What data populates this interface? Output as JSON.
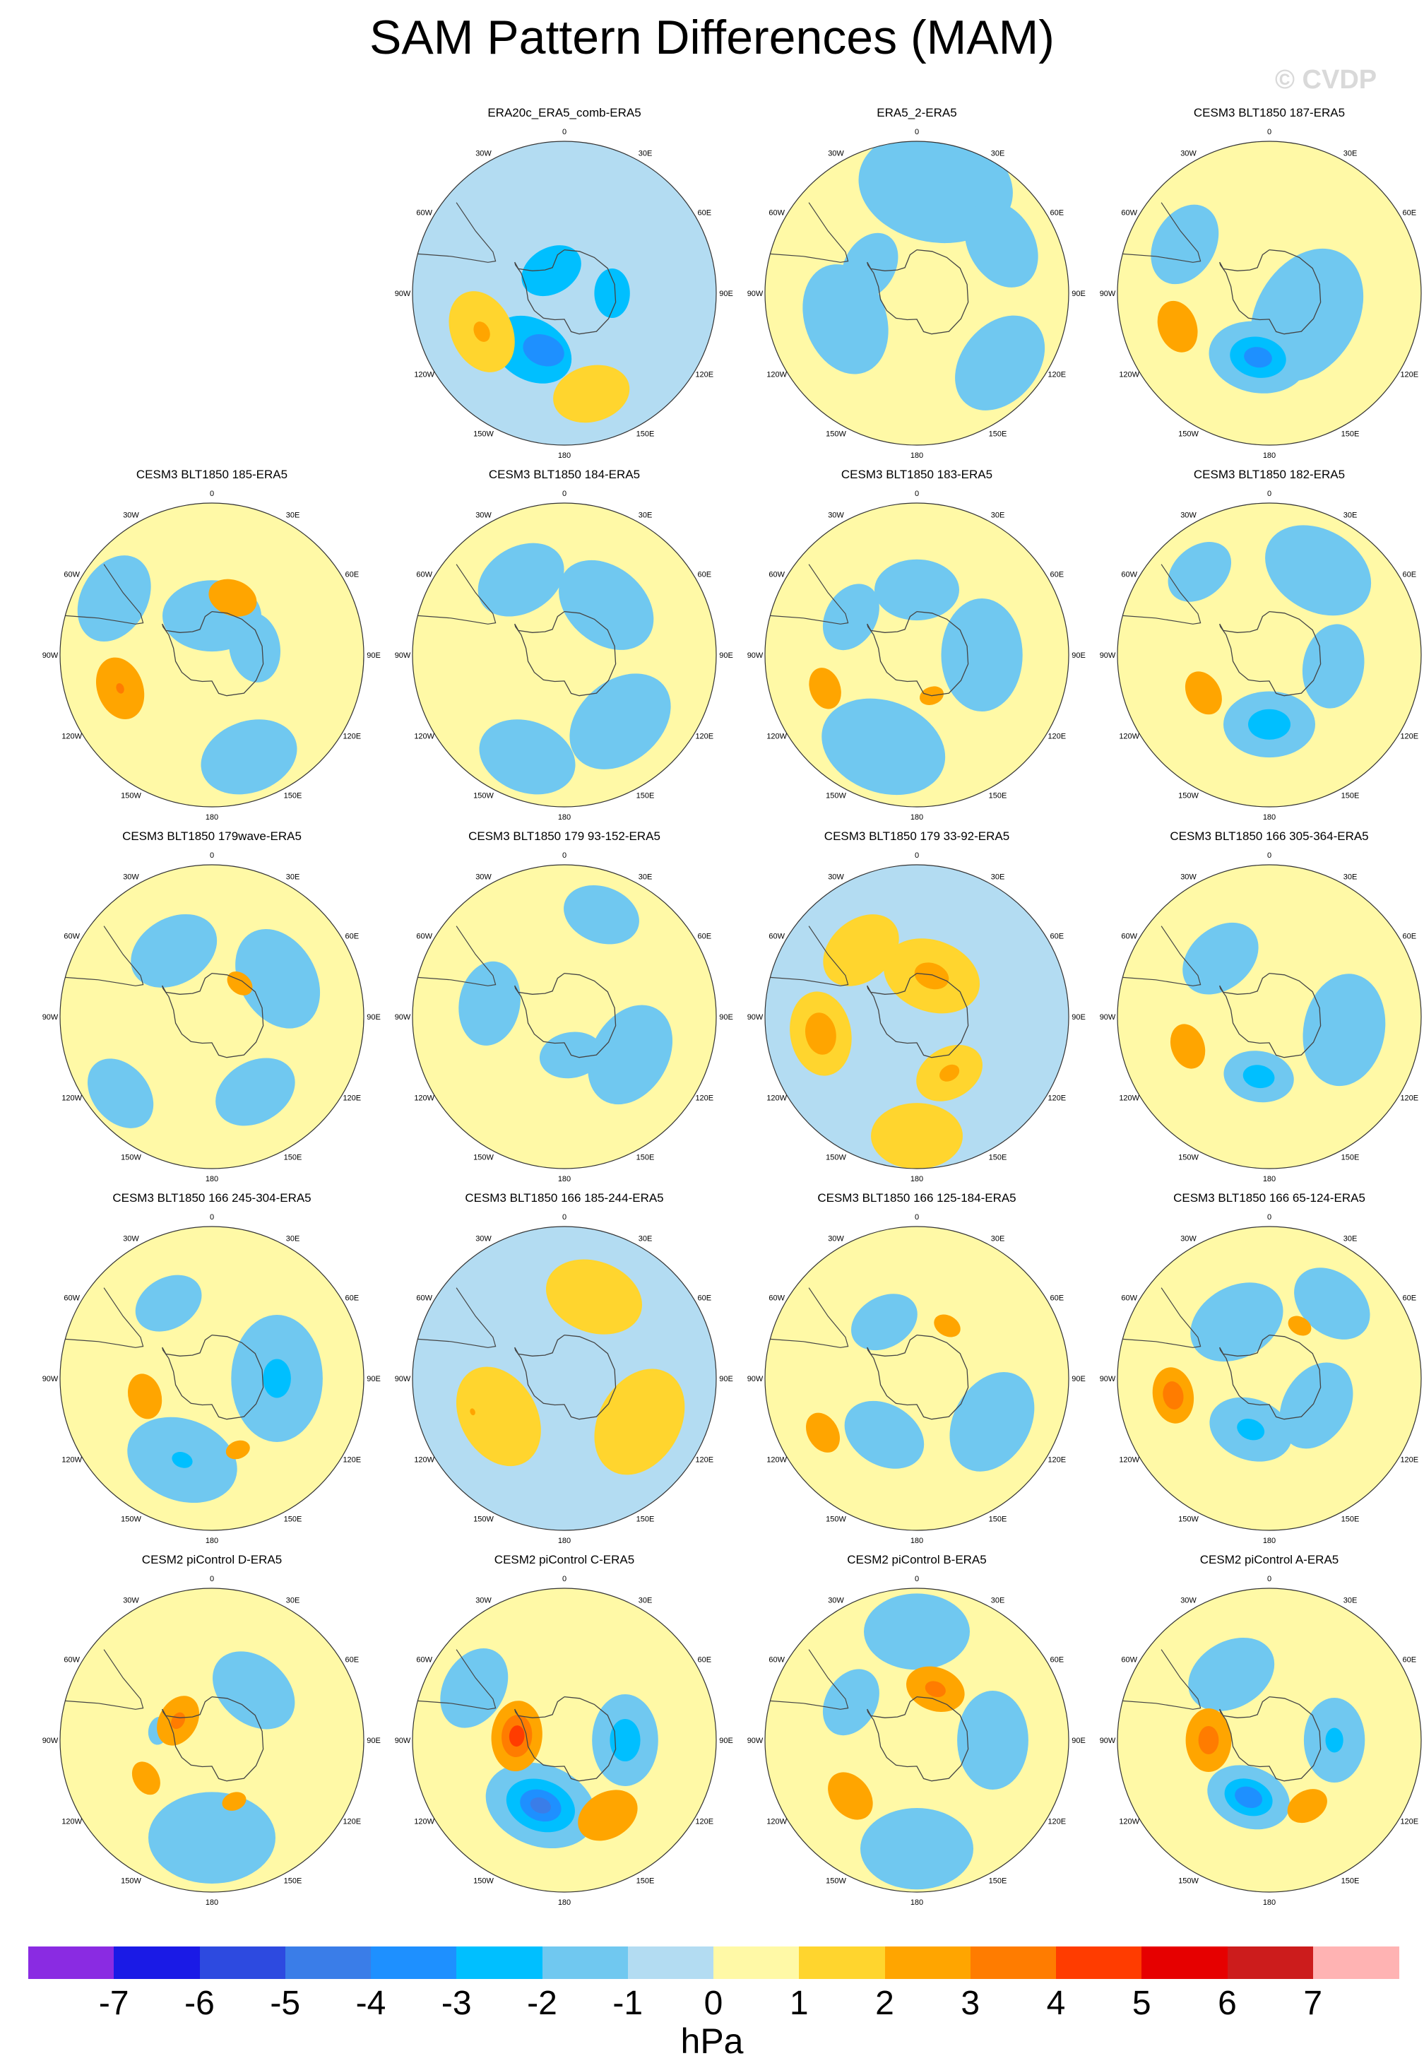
{
  "figure": {
    "title": "SAM Pattern Differences (MAM)",
    "watermark": "© CVDP",
    "units": "hPa"
  },
  "lon_labels": [
    "0",
    "30E",
    "60E",
    "90E",
    "120E",
    "150E",
    "180",
    "150W",
    "120W",
    "90W",
    "60W",
    "30W"
  ],
  "colors": {
    "zero_to_neg1": "#b3dcf2",
    "zero_to_pos1": "#fff9a6",
    "coast": "#444444",
    "circle": "#333333"
  },
  "panels": [
    {
      "title": "ERA20c_ERA5_comb-ERA5",
      "background": "#b3dcf2",
      "features": [
        {
          "lon": 210,
          "lat": -60,
          "level": -2,
          "size": 1.2
        },
        {
          "lon": 200,
          "lat": -62,
          "level": -3,
          "size": 0.6
        },
        {
          "lon": 330,
          "lat": -78,
          "level": -2,
          "size": 0.9
        },
        {
          "lon": 90,
          "lat": -68,
          "level": -2,
          "size": 0.7
        },
        {
          "lon": 245,
          "lat": -48,
          "level": 1,
          "size": 1.2
        },
        {
          "lon": 245,
          "lat": -48,
          "level": 2,
          "size": 0.3
        },
        {
          "lon": 165,
          "lat": -42,
          "level": 1,
          "size": 1.1
        }
      ]
    },
    {
      "title": "ERA5_2-ERA5",
      "background": "#fff9a6",
      "features": [
        {
          "lon": 10,
          "lat": -40,
          "level": -1,
          "size": 2.2
        },
        {
          "lon": 60,
          "lat": -45,
          "level": -1,
          "size": 1.3
        },
        {
          "lon": 250,
          "lat": -55,
          "level": -1,
          "size": 1.6
        },
        {
          "lon": 130,
          "lat": -40,
          "level": -1,
          "size": 1.5
        },
        {
          "lon": 300,
          "lat": -65,
          "level": -1,
          "size": 1.0
        }
      ]
    },
    {
      "title": "CESM3 BLT1850 187-ERA5",
      "background": "#fff9a6",
      "features": [
        {
          "lon": 300,
          "lat": -45,
          "level": -1,
          "size": 1.2
        },
        {
          "lon": 120,
          "lat": -70,
          "level": -1,
          "size": 2.0
        },
        {
          "lon": 190,
          "lat": -60,
          "level": -1,
          "size": 1.4
        },
        {
          "lon": 190,
          "lat": -60,
          "level": -2,
          "size": 0.8
        },
        {
          "lon": 190,
          "lat": -60,
          "level": -3,
          "size": 0.4
        },
        {
          "lon": 250,
          "lat": -45,
          "level": 1,
          "size": 0.5
        },
        {
          "lon": 250,
          "lat": -45,
          "level": 2,
          "size": 0.75
        }
      ]
    },
    {
      "title": "CESM3 BLT1850 185-ERA5",
      "background": "#fff9a6",
      "features": [
        {
          "lon": 0,
          "lat": -72,
          "level": -1,
          "size": 1.4
        },
        {
          "lon": 80,
          "lat": -70,
          "level": -1,
          "size": 1.0
        },
        {
          "lon": 160,
          "lat": -40,
          "level": -1,
          "size": 1.4
        },
        {
          "lon": 300,
          "lat": -38,
          "level": -1,
          "size": 1.3
        },
        {
          "lon": 20,
          "lat": -62,
          "level": 2,
          "size": 0.7
        },
        {
          "lon": 250,
          "lat": -45,
          "level": 2,
          "size": 0.9
        },
        {
          "lon": 250,
          "lat": -45,
          "level": 3,
          "size": 0.15
        }
      ]
    },
    {
      "title": "CESM3 BLT1850 184-ERA5",
      "background": "#fff9a6",
      "features": [
        {
          "lon": 40,
          "lat": -60,
          "level": -1,
          "size": 1.5
        },
        {
          "lon": 330,
          "lat": -50,
          "level": -1,
          "size": 1.3
        },
        {
          "lon": 140,
          "lat": -50,
          "level": -1,
          "size": 1.6
        },
        {
          "lon": 200,
          "lat": -40,
          "level": -1,
          "size": 1.4
        }
      ]
    },
    {
      "title": "CESM3 BLT1850 183-ERA5",
      "background": "#fff9a6",
      "features": [
        {
          "lon": 0,
          "lat": -60,
          "level": -1,
          "size": 1.2
        },
        {
          "lon": 90,
          "lat": -60,
          "level": -1,
          "size": 1.6
        },
        {
          "lon": 200,
          "lat": -45,
          "level": -1,
          "size": 1.8
        },
        {
          "lon": 300,
          "lat": -55,
          "level": -1,
          "size": 1.0
        },
        {
          "lon": 250,
          "lat": -45,
          "level": 2,
          "size": 0.6
        },
        {
          "lon": 160,
          "lat": -70,
          "level": 2,
          "size": 0.35
        }
      ]
    },
    {
      "title": "CESM3 BLT1850 182-ERA5",
      "background": "#fff9a6",
      "features": [
        {
          "lon": 30,
          "lat": -45,
          "level": -1,
          "size": 1.6
        },
        {
          "lon": 100,
          "lat": -60,
          "level": -1,
          "size": 1.2
        },
        {
          "lon": 180,
          "lat": -58,
          "level": -1,
          "size": 1.3
        },
        {
          "lon": 180,
          "lat": -58,
          "level": -2,
          "size": 0.6
        },
        {
          "lon": 320,
          "lat": -40,
          "level": -1,
          "size": 1.0
        },
        {
          "lon": 240,
          "lat": -55,
          "level": 2,
          "size": 0.65
        }
      ]
    },
    {
      "title": "CESM3 BLT1850 179wave-ERA5",
      "background": "#fff9a6",
      "features": [
        {
          "lon": 60,
          "lat": -55,
          "level": -1,
          "size": 1.5
        },
        {
          "lon": 150,
          "lat": -50,
          "level": -1,
          "size": 1.2
        },
        {
          "lon": 230,
          "lat": -35,
          "level": -1,
          "size": 1.1
        },
        {
          "lon": 330,
          "lat": -55,
          "level": -1,
          "size": 1.3
        },
        {
          "lon": 40,
          "lat": -70,
          "level": 2,
          "size": 0.4
        }
      ]
    },
    {
      "title": "CESM3 BLT1850 179 93-152-ERA5",
      "background": "#fff9a6",
      "features": [
        {
          "lon": 20,
          "lat": -40,
          "level": -1,
          "size": 1.1
        },
        {
          "lon": 120,
          "lat": -55,
          "level": -1,
          "size": 1.5
        },
        {
          "lon": 280,
          "lat": -55,
          "level": -1,
          "size": 1.2
        },
        {
          "lon": 170,
          "lat": -72,
          "level": -1,
          "size": 0.9
        }
      ]
    },
    {
      "title": "CESM3 BLT1850 179 33-92-ERA5",
      "background": "#b3dcf2",
      "features": [
        {
          "lon": 20,
          "lat": -70,
          "level": 1,
          "size": 1.4
        },
        {
          "lon": 20,
          "lat": -70,
          "level": 2,
          "size": 0.5
        },
        {
          "lon": 260,
          "lat": -45,
          "level": 1,
          "size": 1.2
        },
        {
          "lon": 260,
          "lat": -45,
          "level": 2,
          "size": 0.6
        },
        {
          "lon": 150,
          "lat": -60,
          "level": 1,
          "size": 1.0
        },
        {
          "lon": 150,
          "lat": -60,
          "level": 2,
          "size": 0.3
        },
        {
          "lon": 180,
          "lat": -35,
          "level": 1,
          "size": 1.3
        },
        {
          "lon": 320,
          "lat": -50,
          "level": 1,
          "size": 1.2
        }
      ]
    },
    {
      "title": "CESM3 BLT1850 166 305-364-ERA5",
      "background": "#fff9a6",
      "features": [
        {
          "lon": 100,
          "lat": -55,
          "level": -1,
          "size": 1.6
        },
        {
          "lon": 190,
          "lat": -62,
          "level": -1,
          "size": 1.0
        },
        {
          "lon": 190,
          "lat": -62,
          "level": -2,
          "size": 0.45
        },
        {
          "lon": 320,
          "lat": -55,
          "level": -1,
          "size": 1.2
        },
        {
          "lon": 250,
          "lat": -50,
          "level": 2,
          "size": 0.65
        }
      ]
    },
    {
      "title": "CESM3 BLT1850 166 245-304-ERA5",
      "background": "#fff9a6",
      "features": [
        {
          "lon": 90,
          "lat": -60,
          "level": -1,
          "size": 1.8
        },
        {
          "lon": 90,
          "lat": -60,
          "level": -2,
          "size": 0.55
        },
        {
          "lon": 200,
          "lat": -50,
          "level": -1,
          "size": 1.6
        },
        {
          "lon": 200,
          "lat": -50,
          "level": -2,
          "size": 0.3
        },
        {
          "lon": 330,
          "lat": -50,
          "level": -1,
          "size": 1.0
        },
        {
          "lon": 255,
          "lat": -58,
          "level": 2,
          "size": 0.65
        },
        {
          "lon": 160,
          "lat": -55,
          "level": 2,
          "size": 0.35
        }
      ]
    },
    {
      "title": "CESM3 BLT1850 166 185-244-ERA5",
      "background": "#b3dcf2",
      "features": [
        {
          "lon": 20,
          "lat": -50,
          "level": 1,
          "size": 1.4
        },
        {
          "lon": 120,
          "lat": -50,
          "level": 1,
          "size": 1.6
        },
        {
          "lon": 240,
          "lat": -55,
          "level": 1,
          "size": 1.5
        },
        {
          "lon": 250,
          "lat": -45,
          "level": 2,
          "size": 0.1
        }
      ]
    },
    {
      "title": "CESM3 BLT1850 166 125-184-ERA5",
      "background": "#fff9a6",
      "features": [
        {
          "lon": 120,
          "lat": -50,
          "level": -1,
          "size": 1.5
        },
        {
          "lon": 210,
          "lat": -60,
          "level": -1,
          "size": 1.2
        },
        {
          "lon": 330,
          "lat": -60,
          "level": -1,
          "size": 1.0
        },
        {
          "lon": 30,
          "lat": -62,
          "level": 2,
          "size": 0.4
        },
        {
          "lon": 240,
          "lat": -40,
          "level": 2,
          "size": 0.6
        }
      ]
    },
    {
      "title": "CESM3 BLT1850 166 65-124-ERA5",
      "background": "#fff9a6",
      "features": [
        {
          "lon": 330,
          "lat": -60,
          "level": -1,
          "size": 1.4
        },
        {
          "lon": 120,
          "lat": -65,
          "level": -1,
          "size": 1.3
        },
        {
          "lon": 200,
          "lat": -65,
          "level": -1,
          "size": 1.2
        },
        {
          "lon": 200,
          "lat": -65,
          "level": -2,
          "size": 0.4
        },
        {
          "lon": 40,
          "lat": -45,
          "level": -1,
          "size": 1.2
        },
        {
          "lon": 260,
          "lat": -45,
          "level": 2,
          "size": 0.8
        },
        {
          "lon": 260,
          "lat": -45,
          "level": 3,
          "size": 0.4
        },
        {
          "lon": 30,
          "lat": -62,
          "level": 2,
          "size": 0.35
        }
      ]
    },
    {
      "title": "CESM2 piControl D-ERA5",
      "background": "#fff9a6",
      "features": [
        {
          "lon": 180,
          "lat": -45,
          "level": -1,
          "size": 1.8
        },
        {
          "lon": 40,
          "lat": -60,
          "level": -1,
          "size": 1.3
        },
        {
          "lon": 280,
          "lat": -65,
          "level": -1,
          "size": 0.4
        },
        {
          "lon": 300,
          "lat": -72,
          "level": 2,
          "size": 0.75
        },
        {
          "lon": 300,
          "lat": -72,
          "level": 3,
          "size": 0.25
        },
        {
          "lon": 240,
          "lat": -55,
          "level": 2,
          "size": 0.5
        },
        {
          "lon": 160,
          "lat": -60,
          "level": 2,
          "size": 0.35
        }
      ]
    },
    {
      "title": "CESM2 piControl C-ERA5",
      "background": "#fff9a6",
      "features": [
        {
          "lon": 300,
          "lat": -42,
          "level": -1,
          "size": 1.2
        },
        {
          "lon": 90,
          "lat": -62,
          "level": -1,
          "size": 1.3
        },
        {
          "lon": 90,
          "lat": -62,
          "level": -2,
          "size": 0.6
        },
        {
          "lon": 200,
          "lat": -58,
          "level": -1,
          "size": 1.6
        },
        {
          "lon": 200,
          "lat": -58,
          "level": -2,
          "size": 1.0
        },
        {
          "lon": 200,
          "lat": -58,
          "level": -3,
          "size": 0.6
        },
        {
          "lon": 200,
          "lat": -58,
          "level": -4,
          "size": 0.3
        },
        {
          "lon": 275,
          "lat": -68,
          "level": 2,
          "size": 1.0
        },
        {
          "lon": 275,
          "lat": -68,
          "level": 3,
          "size": 0.6
        },
        {
          "lon": 275,
          "lat": -68,
          "level": 4,
          "size": 0.3
        },
        {
          "lon": 150,
          "lat": -50,
          "level": 2,
          "size": 0.9
        }
      ]
    },
    {
      "title": "CESM2 piControl B-ERA5",
      "background": "#fff9a6",
      "features": [
        {
          "lon": 0,
          "lat": -40,
          "level": -1,
          "size": 1.5
        },
        {
          "lon": 90,
          "lat": -55,
          "level": -1,
          "size": 1.4
        },
        {
          "lon": 180,
          "lat": -40,
          "level": -1,
          "size": 1.6
        },
        {
          "lon": 300,
          "lat": -55,
          "level": -1,
          "size": 1.0
        },
        {
          "lon": 20,
          "lat": -65,
          "level": 2,
          "size": 0.85
        },
        {
          "lon": 20,
          "lat": -65,
          "level": 3,
          "size": 0.3
        },
        {
          "lon": 230,
          "lat": -50,
          "level": 2,
          "size": 0.75
        }
      ]
    },
    {
      "title": "CESM2 piControl A-ERA5",
      "background": "#fff9a6",
      "features": [
        {
          "lon": 330,
          "lat": -55,
          "level": -1,
          "size": 1.3
        },
        {
          "lon": 90,
          "lat": -60,
          "level": -1,
          "size": 1.2
        },
        {
          "lon": 90,
          "lat": -60,
          "level": -2,
          "size": 0.35
        },
        {
          "lon": 200,
          "lat": -62,
          "level": -1,
          "size": 1.2
        },
        {
          "lon": 200,
          "lat": -62,
          "level": -2,
          "size": 0.7
        },
        {
          "lon": 200,
          "lat": -62,
          "level": -3,
          "size": 0.4
        },
        {
          "lon": 270,
          "lat": -62,
          "level": 2,
          "size": 0.9
        },
        {
          "lon": 270,
          "lat": -62,
          "level": 3,
          "size": 0.4
        },
        {
          "lon": 150,
          "lat": -55,
          "level": 2,
          "size": 0.6
        }
      ]
    }
  ],
  "colorbar": {
    "ticks": [
      "-7",
      "-6",
      "-5",
      "-4",
      "-3",
      "-2",
      "-1",
      "0",
      "1",
      "2",
      "3",
      "4",
      "5",
      "6",
      "7"
    ],
    "colors": [
      "#8a2be2",
      "#1a1ae6",
      "#2d4ae0",
      "#3a7de8",
      "#1e90ff",
      "#00bfff",
      "#70c8f0",
      "#b3dcf2",
      "#fff9a6",
      "#ffd52e",
      "#ffa500",
      "#ff7c00",
      "#ff3c00",
      "#e60000",
      "#cc1c1c",
      "#ffb3b3"
    ]
  }
}
